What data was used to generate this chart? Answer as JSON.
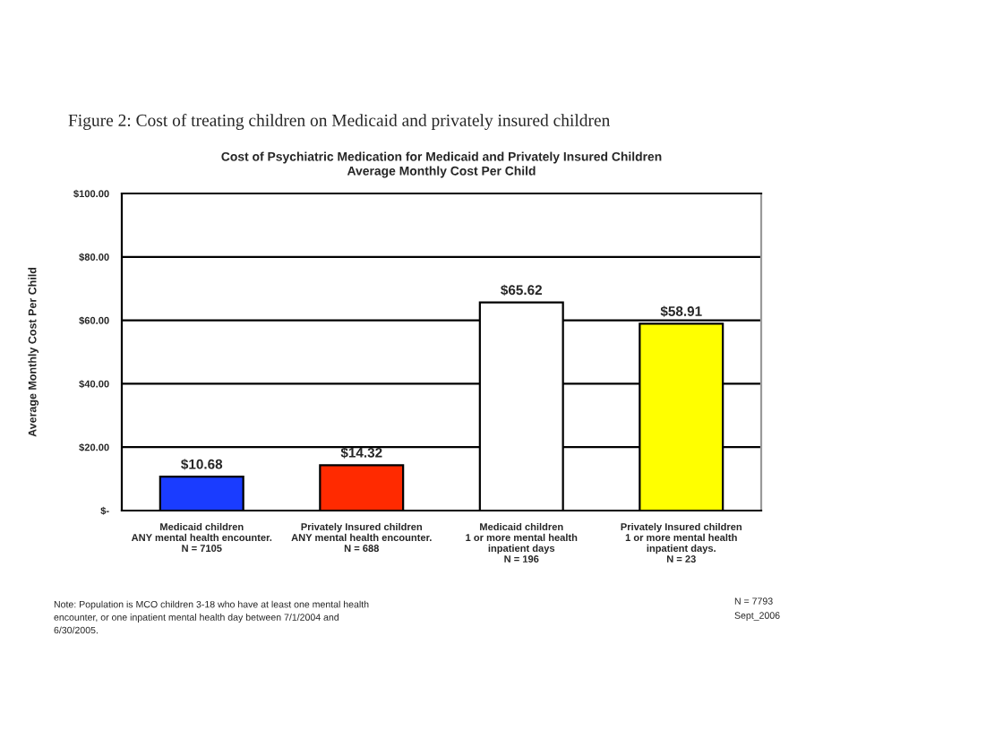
{
  "chart_data": {
    "type": "bar",
    "title": "Figure 2: Cost of treating children on Medicaid and privately insured children",
    "subtitle": "Cost of Psychiatric Medication for Medicaid and Privately Insured Children\nAverage Monthly Cost Per Child",
    "ylabel": "Average Monthly Cost Per Child",
    "categories": [
      "Medicaid children\nANY mental health encounter.\nN = 7105",
      "Privately Insured children\nANY mental health encounter.\nN = 688",
      "Medicaid children\n1 or more mental health\ninpatient days\nN = 196",
      "Privately Insured children\n1 or more mental health\ninpatient days.\nN = 23"
    ],
    "values": [
      10.68,
      14.32,
      65.62,
      58.91
    ],
    "colors": [
      "#1a3cff",
      "#ff2a00",
      "#ffffff",
      "#ffff00"
    ],
    "value_labels": [
      "$10.68",
      "$14.32",
      "$65.62",
      "$58.91"
    ],
    "ylim": [
      0,
      100
    ],
    "yticks": [
      {
        "value": 0,
        "label": "$-"
      },
      {
        "value": 20,
        "label": "$20.00"
      },
      {
        "value": 40,
        "label": "$40.00"
      },
      {
        "value": 60,
        "label": "$60.00"
      },
      {
        "value": 80,
        "label": "$80.00"
      },
      {
        "value": 100,
        "label": "$100.00"
      }
    ],
    "grid": "y",
    "annotations": [
      "Note: Population is MCO children 3-18 who have at least one mental health\nencounter, or one inpatient mental health day between 7/1/2004 and\n6/30/2005.",
      "N = 7793",
      "Sept_2006"
    ]
  }
}
